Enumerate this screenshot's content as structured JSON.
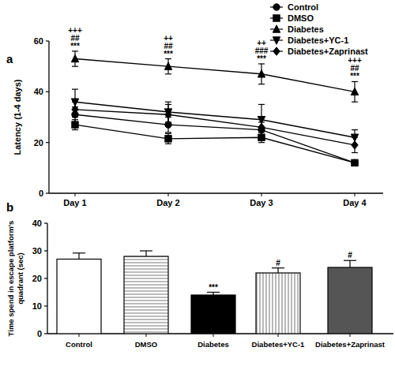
{
  "chart_data": [
    {
      "type": "line",
      "title": "a",
      "categories": [
        "Day 1",
        "Day 2",
        "Day 3",
        "Day 4"
      ],
      "ylabel": "Latency (1-4 days)",
      "ylim": [
        0,
        60
      ],
      "yticks": [
        0,
        20,
        40,
        60
      ],
      "legend": "top-right",
      "series": [
        {
          "name": "Control",
          "color": "#000000",
          "marker": "circle",
          "values": [
            31,
            27,
            25,
            12
          ],
          "errors": [
            3,
            3,
            3,
            1
          ]
        },
        {
          "name": "DMSO",
          "color": "#000000",
          "marker": "square",
          "values": [
            27,
            21.5,
            22,
            12
          ],
          "errors": [
            2,
            2,
            2,
            1
          ]
        },
        {
          "name": "Diabetes",
          "color": "#000000",
          "marker": "triangle",
          "values": [
            53,
            50,
            47,
            40
          ],
          "errors": [
            3,
            3,
            4,
            4
          ]
        },
        {
          "name": "Diabetes+YC-1",
          "color": "#000000",
          "marker": "triangle-down",
          "values": [
            36,
            32,
            29,
            22
          ],
          "errors": [
            5,
            4,
            6,
            3
          ]
        },
        {
          "name": "Diabetes+Zaprinast",
          "color": "#000000",
          "marker": "diamond",
          "values": [
            33,
            31,
            26,
            19
          ],
          "errors": [
            3,
            4,
            4,
            3
          ]
        }
      ],
      "annotations": [
        [
          "+++",
          "##",
          "***"
        ],
        [
          "++",
          "##",
          "***"
        ],
        [
          "++",
          "###",
          "***"
        ],
        [
          "+++",
          "##",
          "***"
        ]
      ]
    },
    {
      "type": "bar",
      "title": "b",
      "categories": [
        "Control",
        "DMSO",
        "Diabetes",
        "Diabetes+YC-1",
        "Diabetes+Zaprinast"
      ],
      "ylabel": [
        "Time spend in escape platform's",
        "quadrant (sec)"
      ],
      "ylim": [
        0,
        40
      ],
      "yticks": [
        0,
        10,
        20,
        30,
        40
      ],
      "values": [
        27,
        28,
        14,
        22,
        24
      ],
      "errors": [
        2.2,
        2,
        1,
        1.8,
        2.5
      ],
      "colors": [
        "#ffffff",
        "#ffffff",
        "#000000",
        "#ffffff",
        "#555555"
      ],
      "annotations": [
        null,
        null,
        "***",
        "#",
        "#"
      ]
    }
  ]
}
